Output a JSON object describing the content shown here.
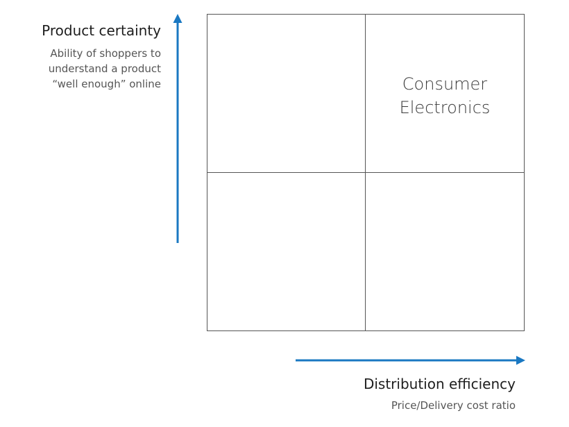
{
  "y_axis": {
    "title": "Product certainty",
    "subtitle_lines": [
      "Ability of shoppers to",
      "understand a product",
      "“well enough” online"
    ]
  },
  "x_axis": {
    "title": "Distribution efficiency",
    "subtitle": "Price/Delivery cost ratio"
  },
  "quadrants": {
    "top_left": "",
    "top_right_lines": [
      "Consumer",
      "Electronics"
    ],
    "bottom_left": "",
    "bottom_right": ""
  },
  "colors": {
    "arrow": "#1a78c2",
    "grid_line": "#555555"
  }
}
